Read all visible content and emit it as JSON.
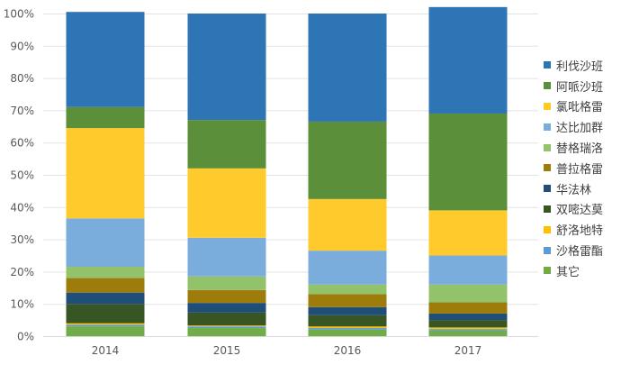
{
  "chart_data": {
    "type": "bar",
    "stacked": true,
    "percent": true,
    "title": "",
    "xlabel": "",
    "ylabel": "",
    "ylim": [
      0,
      100
    ],
    "yticks": [
      "0%",
      "10%",
      "20%",
      "30%",
      "40%",
      "50%",
      "60%",
      "70%",
      "80%",
      "90%",
      "100%"
    ],
    "categories": [
      "2014",
      "2015",
      "2016",
      "2017"
    ],
    "legend_position": "right",
    "series": [
      {
        "name": "其它",
        "color": "#70ad47",
        "values": [
          3,
          2.5,
          2,
          1.7
        ]
      },
      {
        "name": "沙格雷酯",
        "color": "#5b9bd5",
        "values": [
          0.5,
          0.5,
          0.5,
          0.5
        ]
      },
      {
        "name": "舒洛地特",
        "color": "#ffc000",
        "values": [
          0.5,
          0.3,
          0.5,
          0.5
        ]
      },
      {
        "name": "双嘧达莫",
        "color": "#375623",
        "values": [
          6,
          4,
          3.5,
          2.3
        ]
      },
      {
        "name": "华法林",
        "color": "#1f4e79",
        "values": [
          3.5,
          3,
          2.5,
          2
        ]
      },
      {
        "name": "普拉格雷",
        "color": "#9e7c0c",
        "values": [
          4.5,
          4,
          4,
          3.5
        ]
      },
      {
        "name": "替格瑞洛",
        "color": "#92c36b",
        "values": [
          3.5,
          4.2,
          3,
          5.5
        ]
      },
      {
        "name": "达比加群",
        "color": "#7aaddc",
        "values": [
          15,
          12,
          10.5,
          9
        ]
      },
      {
        "name": "氯吡格雷",
        "color": "#ffca2c",
        "values": [
          28,
          21.5,
          16,
          14
        ]
      },
      {
        "name": "阿哌沙班",
        "color": "#5b8f39",
        "values": [
          6.5,
          15,
          24,
          30
        ]
      },
      {
        "name": "利伐沙班",
        "color": "#2e75b6",
        "values": [
          29.5,
          33,
          33.5,
          33
        ]
      }
    ]
  }
}
